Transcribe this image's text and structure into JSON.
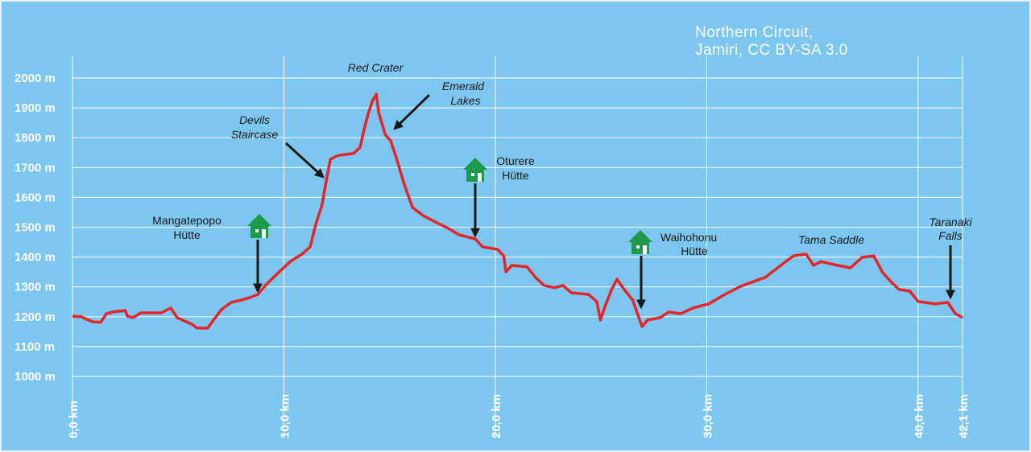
{
  "chart_data": {
    "type": "line",
    "title": [
      "Northern Circuit,",
      "Jamiri, CC BY-SA 3.0"
    ],
    "x": [
      0,
      0.4,
      0.95,
      1.33,
      1.6,
      1.9,
      2.5,
      2.6,
      2.86,
      3.24,
      4.2,
      4.65,
      4.95,
      5.64,
      5.9,
      6.4,
      6.67,
      7.05,
      7.5,
      8.0,
      8.38,
      8.77,
      9.15,
      9.7,
      10.3,
      10.86,
      11.24,
      11.5,
      11.8,
      12.0,
      12.2,
      12.58,
      13.3,
      13.6,
      13.8,
      14.0,
      14.2,
      14.37,
      14.48,
      14.8,
      15.05,
      15.3,
      15.7,
      16.08,
      16.58,
      17.15,
      17.7,
      18.3,
      19.05,
      19.4,
      20.1,
      20.4,
      20.5,
      20.77,
      21.5,
      21.9,
      22.3,
      22.8,
      23.2,
      23.6,
      24.4,
      24.8,
      24.97,
      25.2,
      25.5,
      25.76,
      26.1,
      26.5,
      26.94,
      27.2,
      27.8,
      28.2,
      28.77,
      29.35,
      30.1,
      30.87,
      31.6,
      32.77,
      33.5,
      34.1,
      34.7,
      35.05,
      35.4,
      36.2,
      36.8,
      37.35,
      37.9,
      38.3,
      38.7,
      39.1,
      39.6,
      40.0,
      40.8,
      41.4,
      41.77,
      42.1
    ],
    "series": [
      {
        "color": "#e3262a",
        "values": [
          1202,
          1200,
          1183,
          1181,
          1210,
          1216,
          1221,
          1202,
          1197,
          1213,
          1213,
          1229,
          1197,
          1175,
          1162,
          1162,
          1189,
          1224,
          1248,
          1256,
          1264,
          1275,
          1307,
          1345,
          1385,
          1410,
          1434,
          1507,
          1574,
          1655,
          1728,
          1741,
          1747,
          1768,
          1830,
          1884,
          1925,
          1946,
          1884,
          1809,
          1790,
          1736,
          1642,
          1566,
          1539,
          1518,
          1499,
          1474,
          1461,
          1434,
          1426,
          1404,
          1350,
          1372,
          1367,
          1332,
          1305,
          1297,
          1305,
          1280,
          1275,
          1251,
          1189,
          1237,
          1291,
          1326,
          1291,
          1256,
          1167,
          1189,
          1197,
          1216,
          1210,
          1229,
          1243,
          1275,
          1302,
          1332,
          1372,
          1404,
          1410,
          1372,
          1385,
          1372,
          1364,
          1399,
          1404,
          1350,
          1318,
          1291,
          1286,
          1251,
          1243,
          1248,
          1210,
          1197
        ]
      }
    ],
    "xlim": [
      0,
      42.1
    ],
    "ylim": [
      1000,
      2000
    ],
    "xticks": [
      {
        "value": 0,
        "label": "0,0 km"
      },
      {
        "value": 10,
        "label": "10,0 km"
      },
      {
        "value": 20,
        "label": "20,0 km"
      },
      {
        "value": 30,
        "label": "30,0 km"
      },
      {
        "value": 40,
        "label": "40,0 km"
      },
      {
        "value": 42.1,
        "label": "42,1 km"
      }
    ],
    "yticks": [
      {
        "value": 1000,
        "label": "1000 m"
      },
      {
        "value": 1100,
        "label": "1100 m"
      },
      {
        "value": 1200,
        "label": "1200 m"
      },
      {
        "value": 1300,
        "label": "1300 m"
      },
      {
        "value": 1400,
        "label": "1400 m"
      },
      {
        "value": 1500,
        "label": "1500 m"
      },
      {
        "value": 1600,
        "label": "1600 m"
      },
      {
        "value": 1700,
        "label": "1700 m"
      },
      {
        "value": 1800,
        "label": "1800 m"
      },
      {
        "value": 1900,
        "label": "1900 m"
      },
      {
        "value": 2000,
        "label": "2000 m"
      }
    ],
    "grid": true,
    "annotations": [
      {
        "lines": [
          "Red Crater"
        ]
      },
      {
        "lines": [
          "Emerald",
          "Lakes"
        ]
      },
      {
        "lines": [
          "Devils",
          "Staircase"
        ]
      },
      {
        "lines": [
          "Mangatepopo",
          "Hütte"
        ]
      },
      {
        "lines": [
          "Oturere",
          "Hütte"
        ]
      },
      {
        "lines": [
          "Waihohonu",
          "Hütte"
        ]
      },
      {
        "lines": [
          "Tama Saddle"
        ]
      },
      {
        "lines": [
          "Taranaki",
          "Falls"
        ]
      }
    ]
  }
}
